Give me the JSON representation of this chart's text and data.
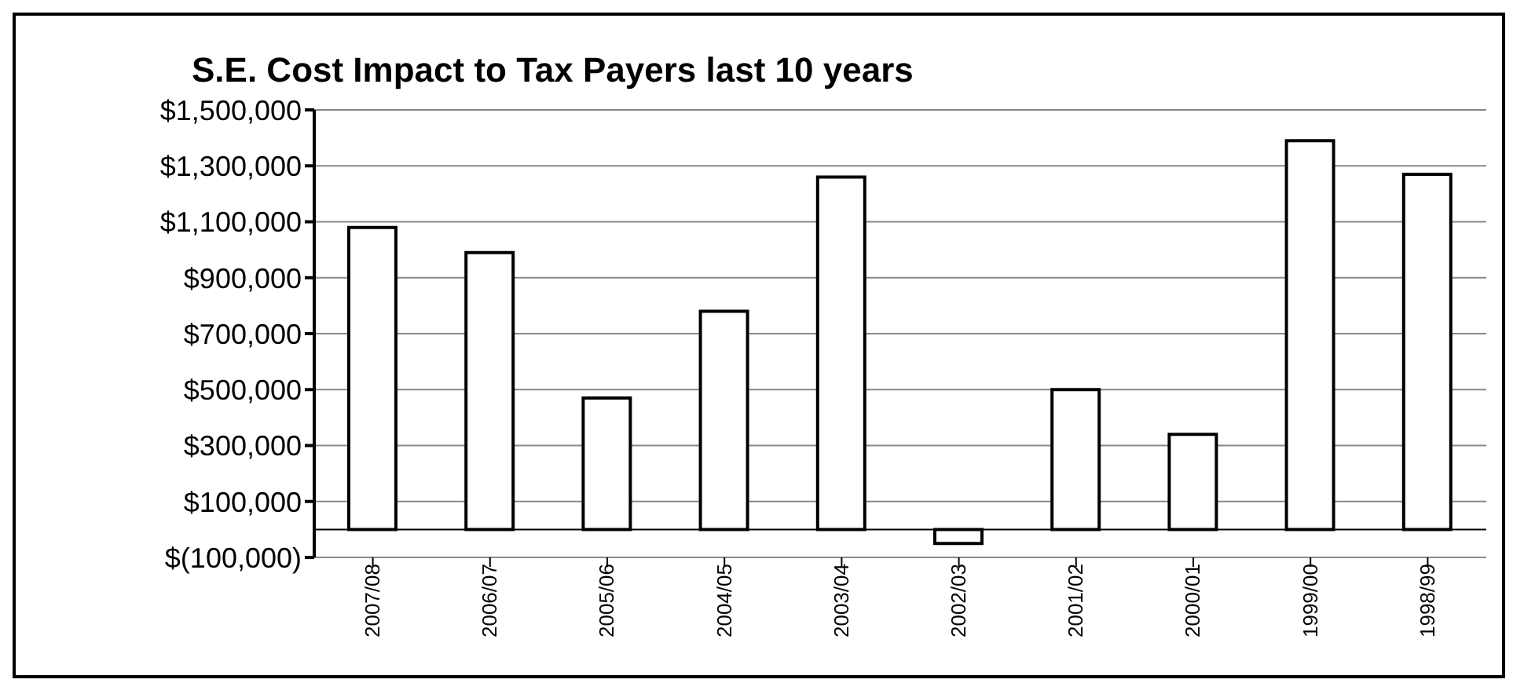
{
  "chart_data": {
    "type": "bar",
    "title": "S.E.  Cost Impact to Tax Payers last 10 years",
    "categories": [
      "2007/08",
      "2006/07",
      "2005/06",
      "2004/05",
      "2003/04",
      "2002/03",
      "2001/02",
      "2000/01",
      "1999/00",
      "1998/99"
    ],
    "values": [
      1080000,
      990000,
      470000,
      780000,
      1260000,
      -50000,
      500000,
      340000,
      1390000,
      1270000
    ],
    "color": "#ffffff",
    "ylim": [
      -100000,
      1500000
    ],
    "yticks": [
      {
        "value": -100000,
        "label": "$(100,000)"
      },
      {
        "value": 100000,
        "label": "$100,000"
      },
      {
        "value": 300000,
        "label": "$300,000"
      },
      {
        "value": 500000,
        "label": "$500,000"
      },
      {
        "value": 700000,
        "label": "$700,000"
      },
      {
        "value": 900000,
        "label": "$900,000"
      },
      {
        "value": 1100000,
        "label": "$1,100,000"
      },
      {
        "value": 1300000,
        "label": "$1,300,000"
      },
      {
        "value": 1500000,
        "label": "$1,500,000"
      }
    ],
    "grid": "y",
    "legend": false
  }
}
